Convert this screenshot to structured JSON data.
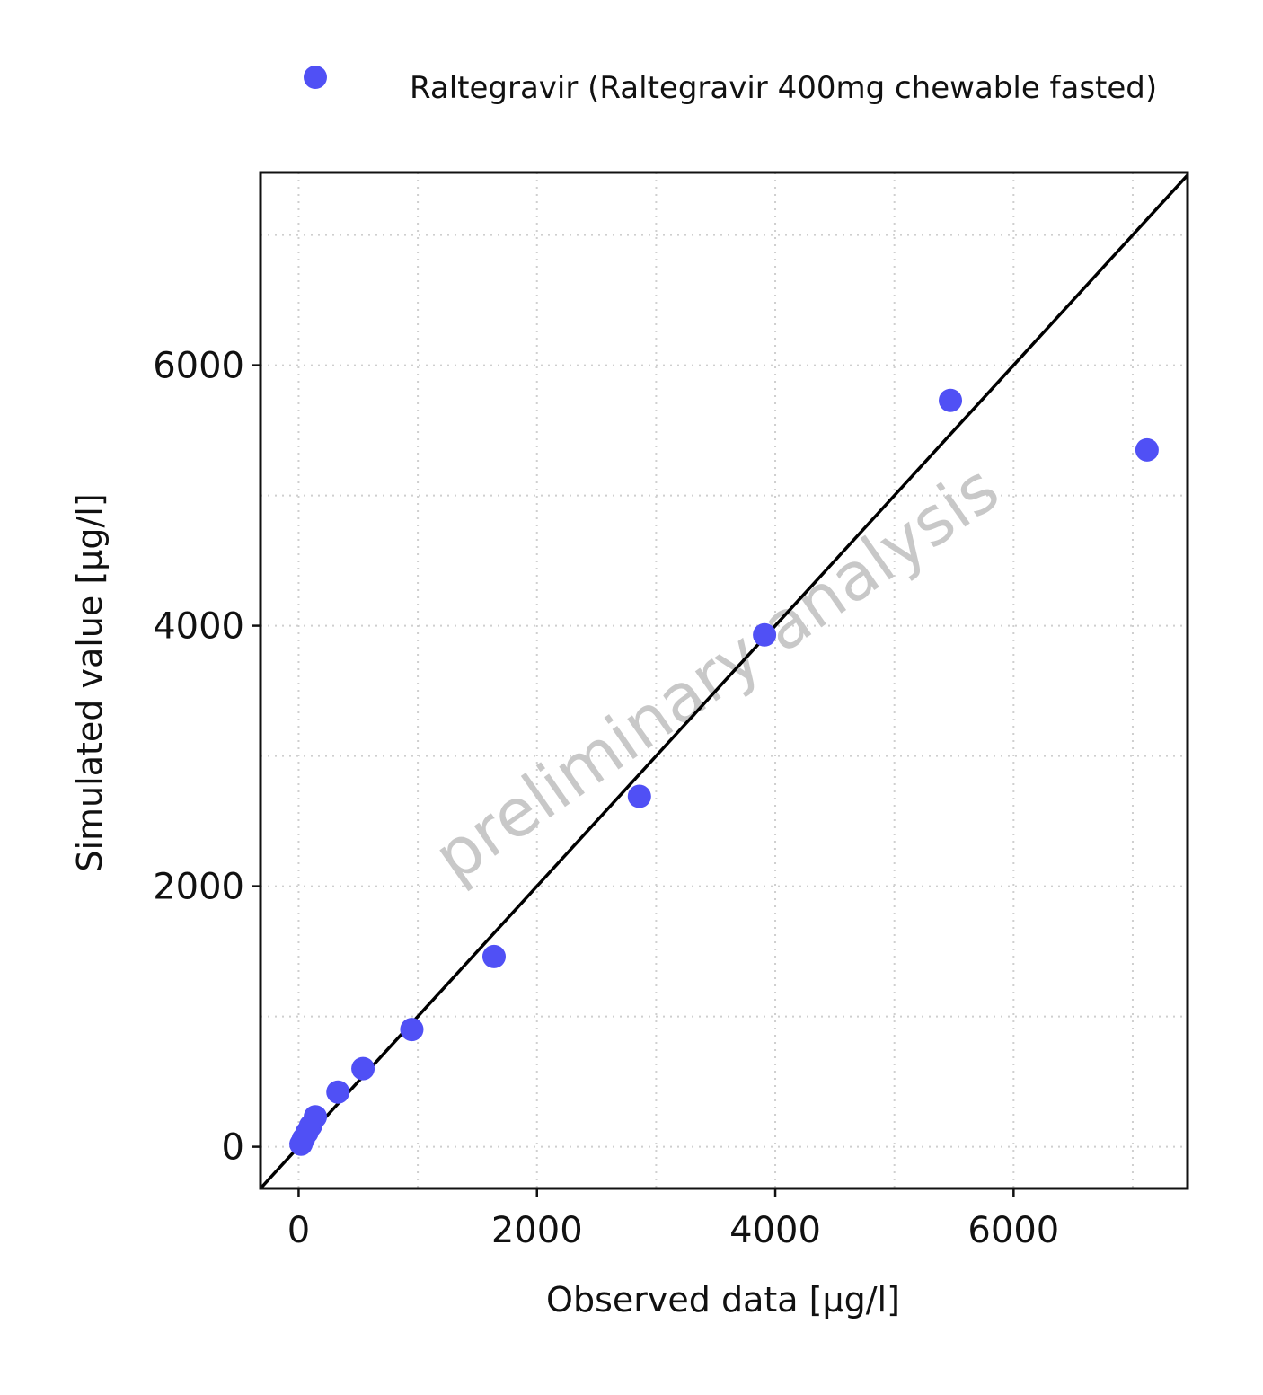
{
  "chart_data": {
    "type": "scatter",
    "xlabel": "Observed data [µg/l]",
    "ylabel": "Simulated value [µg/l]",
    "xlim": [
      -320,
      7460
    ],
    "ylim": [
      -320,
      7480
    ],
    "xticks": [
      0,
      2000,
      4000,
      6000
    ],
    "yticks": [
      0,
      2000,
      4000,
      6000
    ],
    "minor_grid": [
      1000,
      3000,
      5000,
      7000
    ],
    "grid": true,
    "grid_style": "dotted",
    "identity_line": true,
    "legend_position": "top",
    "watermark": "preliminary analysis",
    "colors": {
      "series": "#5050f5",
      "line": "#000000",
      "grid": "#cfcfcf",
      "watermark": "#c8c8c8"
    },
    "series": [
      {
        "name": "Raltegravir (Raltegravir 400mg chewable fasted)",
        "x": [
          20,
          40,
          70,
          100,
          140,
          330,
          540,
          950,
          1640,
          2860,
          3910,
          5470,
          7120
        ],
        "y": [
          20,
          60,
          110,
          160,
          230,
          420,
          600,
          900,
          1460,
          2690,
          3930,
          5730,
          5350
        ]
      }
    ]
  }
}
